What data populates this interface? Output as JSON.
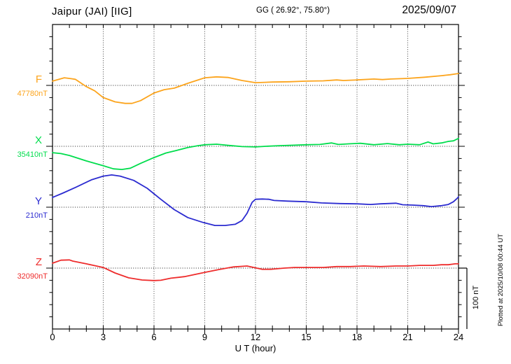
{
  "header": {
    "station": "Jaipur (JAI)  [IIG]",
    "coords": "GG ( 26.92°, 75.80°)",
    "date": "2025/09/07"
  },
  "footer": {
    "xlabel": "U T (hour)"
  },
  "side": {
    "scale_label": "100 nT",
    "plotted_at": "Plotted at 2025/10/08 00:44 UT"
  },
  "chart_data": {
    "type": "line",
    "title": "Magnetogram Jaipur (JAI) IIG 2025/09/07",
    "xlabel": "U T (hour)",
    "x_range": [
      0,
      24
    ],
    "x_major_ticks": [
      0,
      3,
      6,
      9,
      12,
      15,
      18,
      21,
      24
    ],
    "x_minor_step_hours": 1,
    "y_span_nT": 500,
    "y_tick_nT": 20,
    "y_major_tick_nT": 100,
    "scale_bar_nT": 100,
    "grid": "dotted vertical lines every 3 h; dotted horizontal baseline per trace",
    "legend_position": "left-of-axis trace labels",
    "traces": [
      {
        "id": "F",
        "label": "F",
        "base_label": "47780nT",
        "baseline_nT": 47780,
        "color": "#fca41c",
        "offset_nT": 100,
        "points": [
          [
            0,
            7
          ],
          [
            0.7,
            12.5
          ],
          [
            1.1,
            11
          ],
          [
            1.35,
            10
          ],
          [
            2,
            -2
          ],
          [
            2.5,
            -9
          ],
          [
            3,
            -20
          ],
          [
            3.7,
            -27
          ],
          [
            4.3,
            -29.5
          ],
          [
            4.7,
            -29.5
          ],
          [
            5.2,
            -25
          ],
          [
            6,
            -12.5
          ],
          [
            6.6,
            -7
          ],
          [
            7.2,
            -4.5
          ],
          [
            8,
            3.5
          ],
          [
            9,
            12.5
          ],
          [
            9.7,
            14
          ],
          [
            10.4,
            13
          ],
          [
            11.2,
            8
          ],
          [
            12,
            4.5
          ],
          [
            13,
            5.5
          ],
          [
            14,
            6
          ],
          [
            15,
            7
          ],
          [
            16,
            7.5
          ],
          [
            16.8,
            9
          ],
          [
            17.2,
            8
          ],
          [
            18,
            9
          ],
          [
            19,
            10.5
          ],
          [
            19.5,
            9.5
          ],
          [
            20,
            10.5
          ],
          [
            21,
            11.5
          ],
          [
            22,
            13.5
          ],
          [
            23,
            16
          ],
          [
            23.5,
            17.5
          ],
          [
            24,
            19.5
          ]
        ]
      },
      {
        "id": "X",
        "label": "X",
        "base_label": "35410nT",
        "baseline_nT": 35410,
        "color": "#00dd4c",
        "offset_nT": 200,
        "points": [
          [
            0,
            -10.5
          ],
          [
            0.5,
            -12
          ],
          [
            1,
            -15
          ],
          [
            2,
            -24
          ],
          [
            3,
            -32
          ],
          [
            3.6,
            -37
          ],
          [
            4.1,
            -38
          ],
          [
            4.6,
            -36
          ],
          [
            5.2,
            -28
          ],
          [
            6,
            -18.5
          ],
          [
            6.7,
            -11
          ],
          [
            7.3,
            -7
          ],
          [
            8,
            -2
          ],
          [
            8.6,
            1
          ],
          [
            9,
            2.5
          ],
          [
            9.7,
            3.5
          ],
          [
            10.4,
            1.5
          ],
          [
            11.2,
            -0.5
          ],
          [
            12,
            -1
          ],
          [
            12.6,
            0
          ],
          [
            13.4,
            1
          ],
          [
            15,
            2.5
          ],
          [
            15.8,
            3
          ],
          [
            16.5,
            5.5
          ],
          [
            16.9,
            3
          ],
          [
            17.5,
            4
          ],
          [
            18.2,
            5
          ],
          [
            19,
            2.5
          ],
          [
            19.8,
            4.5
          ],
          [
            20.5,
            2.5
          ],
          [
            21,
            3.5
          ],
          [
            21.7,
            2.5
          ],
          [
            22.2,
            7
          ],
          [
            22.5,
            4
          ],
          [
            23,
            5.5
          ],
          [
            23.4,
            8
          ],
          [
            23.7,
            9
          ],
          [
            24,
            13
          ]
        ]
      },
      {
        "id": "Y",
        "label": "Y",
        "base_label": "210nT",
        "baseline_nT": 210,
        "color": "#2b2bd0",
        "offset_nT": 300,
        "points": [
          [
            0,
            16
          ],
          [
            0.6,
            23
          ],
          [
            1.4,
            33
          ],
          [
            2.3,
            45
          ],
          [
            3,
            51
          ],
          [
            3.5,
            53
          ],
          [
            4,
            51
          ],
          [
            4.8,
            44
          ],
          [
            5.6,
            31
          ],
          [
            6.4,
            13
          ],
          [
            7.2,
            -4
          ],
          [
            8,
            -17
          ],
          [
            8.9,
            -25
          ],
          [
            9.6,
            -30
          ],
          [
            10.2,
            -30
          ],
          [
            10.8,
            -28
          ],
          [
            11.2,
            -22
          ],
          [
            11.5,
            -10
          ],
          [
            11.8,
            8
          ],
          [
            12,
            13
          ],
          [
            12.4,
            13.5
          ],
          [
            12.8,
            13
          ],
          [
            13.1,
            11
          ],
          [
            13.9,
            10
          ],
          [
            15,
            9
          ],
          [
            15.9,
            7
          ],
          [
            17,
            6
          ],
          [
            18,
            5.5
          ],
          [
            18.8,
            4.5
          ],
          [
            19.4,
            5.5
          ],
          [
            20.3,
            6.5
          ],
          [
            20.7,
            4
          ],
          [
            21.3,
            3.5
          ],
          [
            21.9,
            2.5
          ],
          [
            22.4,
            1
          ],
          [
            23,
            2.5
          ],
          [
            23.4,
            4.5
          ],
          [
            23.7,
            9
          ],
          [
            23.9,
            14
          ],
          [
            24,
            17
          ]
        ]
      },
      {
        "id": "Z",
        "label": "Z",
        "base_label": "32090nT",
        "baseline_nT": 32090,
        "color": "#ee2c2c",
        "offset_nT": 400,
        "points": [
          [
            0,
            8
          ],
          [
            0.5,
            13
          ],
          [
            1,
            13.5
          ],
          [
            1.2,
            11.5
          ],
          [
            2,
            7
          ],
          [
            2.5,
            4
          ],
          [
            3,
            1
          ],
          [
            3.7,
            -8
          ],
          [
            4.5,
            -16
          ],
          [
            5.3,
            -19.5
          ],
          [
            6,
            -20.5
          ],
          [
            6.4,
            -20
          ],
          [
            7,
            -16.5
          ],
          [
            7.8,
            -14
          ],
          [
            9,
            -7
          ],
          [
            9.9,
            -2
          ],
          [
            10.7,
            2
          ],
          [
            11.5,
            3.5
          ],
          [
            12,
            0.5
          ],
          [
            12.4,
            -2
          ],
          [
            12.9,
            -2
          ],
          [
            13.3,
            -1
          ],
          [
            13.7,
            0
          ],
          [
            14.3,
            1
          ],
          [
            15,
            1
          ],
          [
            16,
            1
          ],
          [
            16.8,
            2.5
          ],
          [
            17.6,
            2.5
          ],
          [
            18.4,
            3.5
          ],
          [
            19.4,
            2.5
          ],
          [
            20.3,
            3.5
          ],
          [
            21,
            3.5
          ],
          [
            21.7,
            4.5
          ],
          [
            22.5,
            4.5
          ],
          [
            23,
            5.5
          ],
          [
            23.4,
            5.5
          ],
          [
            23.8,
            7
          ],
          [
            24,
            7
          ]
        ]
      }
    ]
  }
}
